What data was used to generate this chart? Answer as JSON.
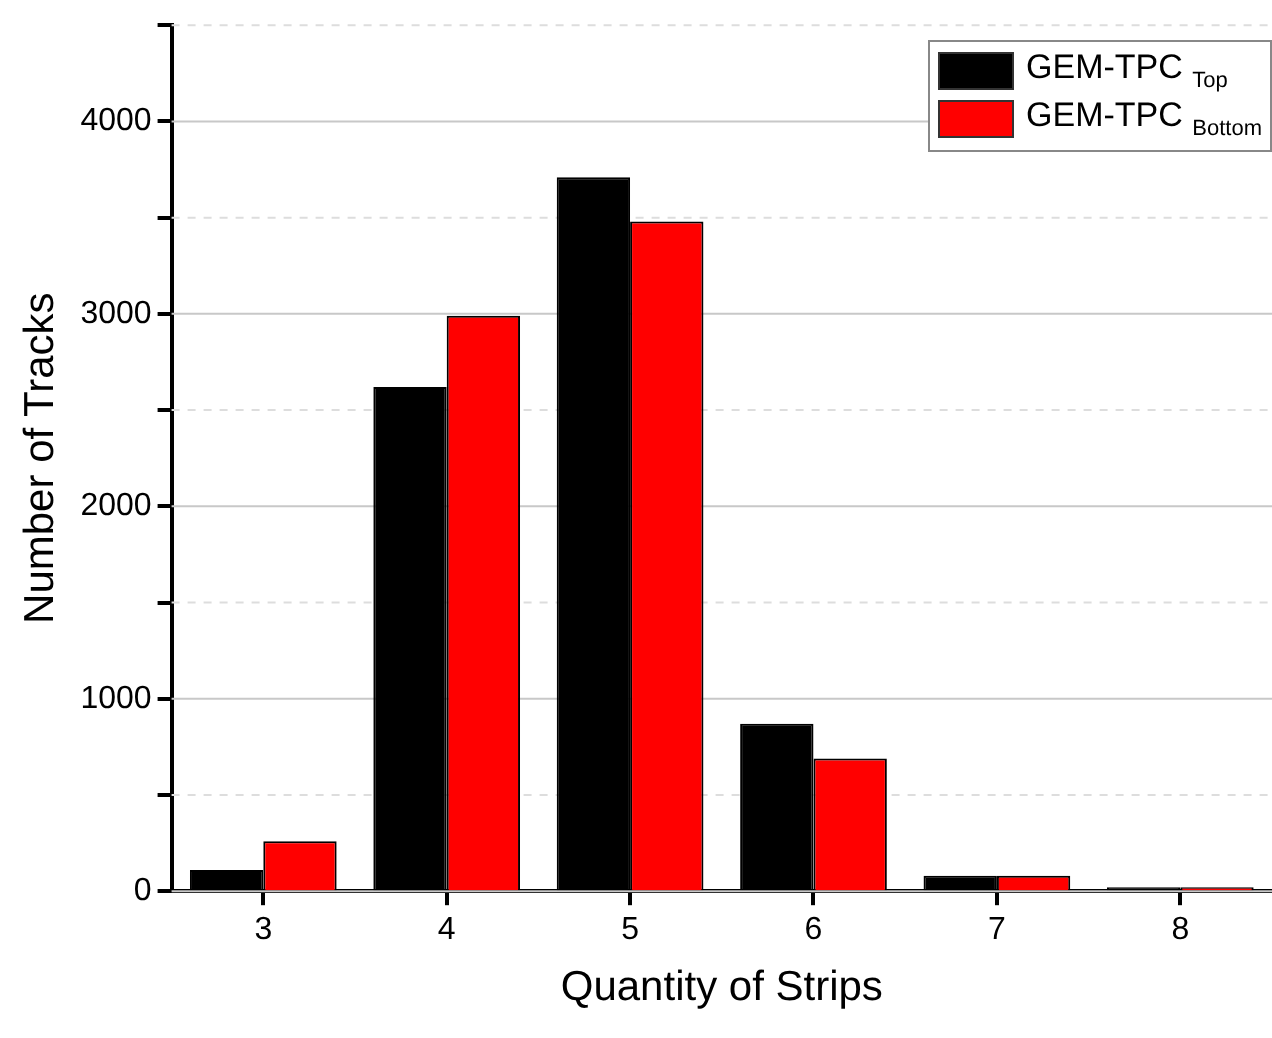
{
  "chart_data": {
    "type": "bar",
    "xlabel": "Quantity of Strips",
    "ylabel": "Number of Tracks",
    "categories": [
      "3",
      "4",
      "5",
      "6",
      "7",
      "8"
    ],
    "series": [
      {
        "name": "GEM-TPC $_{Top}$",
        "color": "#000000",
        "values": [
          110,
          2620,
          3710,
          870,
          80,
          20
        ]
      },
      {
        "name": "GEM-TPC $_{Bottom}$",
        "color": "#ff0000",
        "values": [
          260,
          2990,
          3480,
          690,
          80,
          20
        ]
      }
    ],
    "ylim": [
      0,
      4500
    ],
    "yticks": [
      0,
      {
        "value": 500,
        "label": null
      },
      1000,
      {
        "value": 1500,
        "label": null
      },
      2000,
      {
        "value": 2500,
        "label": null
      },
      3000,
      {
        "value": 3500,
        "label": null
      },
      4000,
      {
        "value": 4500,
        "label": null
      }
    ],
    "grid": "y",
    "legend": "top right"
  }
}
